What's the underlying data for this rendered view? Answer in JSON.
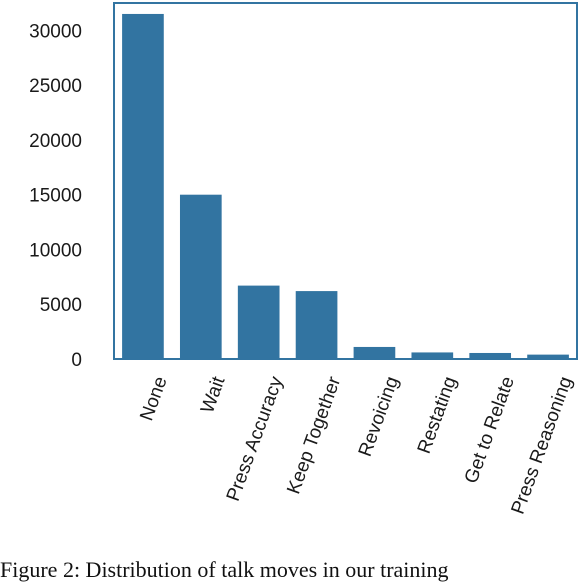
{
  "chart_data": {
    "type": "bar",
    "categories": [
      "None",
      "Wait",
      "Press Accuracy",
      "Keep Together",
      "Revoicing",
      "Restating",
      "Get to Relate",
      "Press Reasoning"
    ],
    "values": [
      31500,
      15000,
      6700,
      6200,
      1100,
      600,
      550,
      400
    ],
    "ylim": [
      0,
      32500
    ],
    "yticks": [
      0,
      5000,
      10000,
      15000,
      20000,
      25000,
      30000
    ],
    "xlabel": "",
    "ylabel": "",
    "grid": false,
    "bar_color": "#3274a1",
    "frame_color": "#3274a1"
  },
  "caption": "Figure 2: Distribution of talk moves in our training"
}
